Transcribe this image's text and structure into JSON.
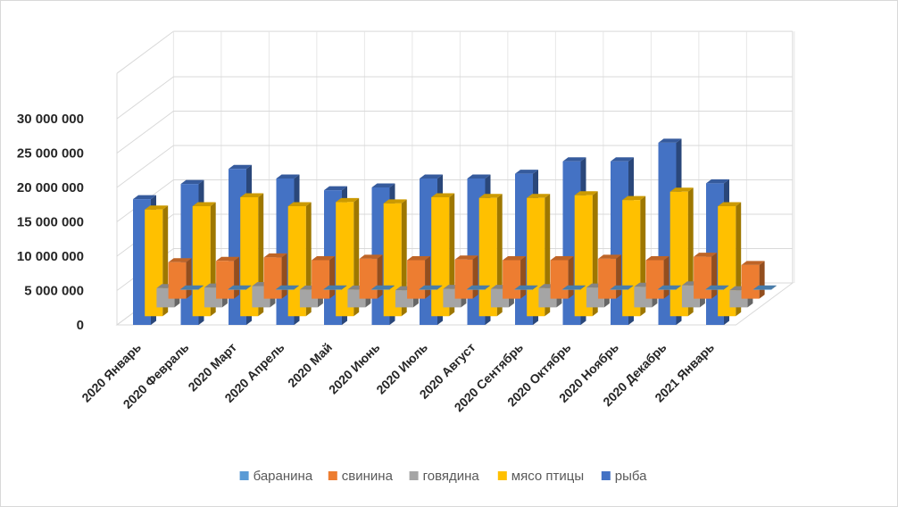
{
  "chart_data": {
    "type": "bar",
    "variant": "3d-clustered-depth",
    "title": "",
    "xlabel": "",
    "ylabel": "",
    "ylim": [
      0,
      30000000
    ],
    "yticks": [
      "0",
      "5 000 000",
      "10 000 000",
      "15 000 000",
      "20 000 000",
      "25 000 000",
      "30 000 000"
    ],
    "grid": true,
    "legend_position": "bottom",
    "categories": [
      "2020 Январь",
      "2020 Февраль",
      "2020 Март",
      "2020 Апрель",
      "2020 Май",
      "2020 Июнь",
      "2020 Июль",
      "2020 Август",
      "2020 Сентябрь",
      "2020 Октябрь",
      "2020 Ноябрь",
      "2020 Декабрь",
      "2021 Январь"
    ],
    "series": [
      {
        "name": "баранина",
        "color": "#5b9bd5",
        "values": [
          80000,
          80000,
          80000,
          80000,
          80000,
          80000,
          80000,
          80000,
          80000,
          80000,
          80000,
          80000,
          80000
        ]
      },
      {
        "name": "свинина",
        "color": "#ed7d31",
        "values": [
          5300000,
          5500000,
          6000000,
          5600000,
          5800000,
          5600000,
          5700000,
          5600000,
          5600000,
          5800000,
          5600000,
          6100000,
          4900000
        ]
      },
      {
        "name": "говядина",
        "color": "#a5a5a5",
        "values": [
          2800000,
          2900000,
          3100000,
          2600000,
          2600000,
          2500000,
          2700000,
          2700000,
          2800000,
          2900000,
          3000000,
          3200000,
          2500000
        ]
      },
      {
        "name": "мясо птицы",
        "color": "#ffc000",
        "values": [
          15500000,
          16000000,
          17300000,
          16000000,
          16600000,
          16400000,
          17300000,
          17200000,
          17200000,
          17600000,
          16900000,
          18100000,
          16000000
        ]
      },
      {
        "name": "рыба",
        "color": "#4472c4",
        "values": [
          18300000,
          20500000,
          22700000,
          21300000,
          19600000,
          20000000,
          21300000,
          21300000,
          22000000,
          23800000,
          23800000,
          26500000,
          20600000
        ]
      }
    ]
  }
}
